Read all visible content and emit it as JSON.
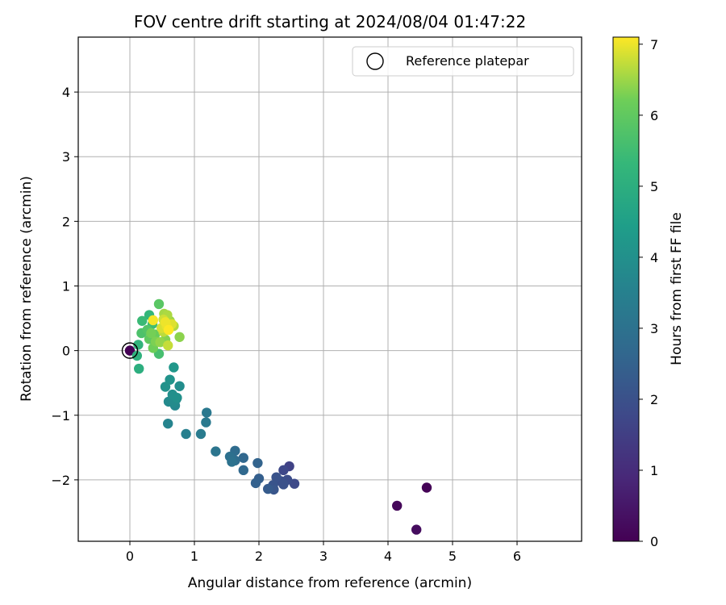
{
  "chart_data": {
    "type": "scatter",
    "title": "FOV centre drift starting at 2024/08/04 01:47:22",
    "xlabel": "Angular distance from reference (arcmin)",
    "ylabel": "Rotation from reference (arcmin)",
    "xlim": [
      -0.8,
      7.0
    ],
    "ylim": [
      -2.95,
      4.85
    ],
    "xticks": [
      0,
      1,
      2,
      3,
      4,
      5,
      6
    ],
    "yticks": [
      -2,
      -1,
      0,
      1,
      2,
      3,
      4
    ],
    "xtick_labels": [
      "0",
      "1",
      "2",
      "3",
      "4",
      "5",
      "6"
    ],
    "ytick_labels": [
      "−2",
      "−1",
      "0",
      "1",
      "2",
      "3",
      "4"
    ],
    "grid": true,
    "legend": {
      "placement": "top-right",
      "entries": [
        {
          "label": "Reference platepar",
          "marker": "open-circle"
        }
      ]
    },
    "reference_point": {
      "x": 0,
      "y": 0
    },
    "colorbar": {
      "label": "Hours from first FF file",
      "colormap": "viridis",
      "range": [
        0,
        7.1
      ],
      "ticks": [
        0,
        1,
        2,
        3,
        4,
        5,
        6,
        7
      ],
      "tick_labels": [
        "0",
        "1",
        "2",
        "3",
        "4",
        "5",
        "6",
        "7"
      ]
    },
    "series": [
      {
        "points": [
          {
            "x": 4.6,
            "y": -2.12,
            "t": 0.05
          },
          {
            "x": 4.14,
            "y": -2.4,
            "t": 0.15
          },
          {
            "x": 4.44,
            "y": -2.77,
            "t": 0.25
          },
          {
            "x": 0.0,
            "y": 0.0,
            "t": 0.0
          },
          {
            "x": 2.47,
            "y": -1.79,
            "t": 1.6
          },
          {
            "x": 2.38,
            "y": -1.85,
            "t": 1.75
          },
          {
            "x": 2.55,
            "y": -2.06,
            "t": 1.8
          },
          {
            "x": 2.44,
            "y": -2.0,
            "t": 1.9
          },
          {
            "x": 2.34,
            "y": -2.02,
            "t": 1.95
          },
          {
            "x": 2.38,
            "y": -2.07,
            "t": 2.0
          },
          {
            "x": 2.27,
            "y": -1.96,
            "t": 2.05
          },
          {
            "x": 2.22,
            "y": -2.08,
            "t": 2.1
          },
          {
            "x": 2.23,
            "y": -2.15,
            "t": 2.15
          },
          {
            "x": 2.14,
            "y": -2.14,
            "t": 2.3
          },
          {
            "x": 2.0,
            "y": -1.98,
            "t": 2.4
          },
          {
            "x": 1.95,
            "y": -2.05,
            "t": 2.45
          },
          {
            "x": 1.98,
            "y": -1.74,
            "t": 2.55
          },
          {
            "x": 1.76,
            "y": -1.66,
            "t": 2.65
          },
          {
            "x": 1.76,
            "y": -1.85,
            "t": 2.7
          },
          {
            "x": 1.63,
            "y": -1.55,
            "t": 2.8
          },
          {
            "x": 1.63,
            "y": -1.7,
            "t": 2.85
          },
          {
            "x": 1.55,
            "y": -1.64,
            "t": 2.95
          },
          {
            "x": 1.58,
            "y": -1.72,
            "t": 3.0
          },
          {
            "x": 1.33,
            "y": -1.56,
            "t": 3.1
          },
          {
            "x": 1.19,
            "y": -0.96,
            "t": 3.2
          },
          {
            "x": 1.18,
            "y": -1.11,
            "t": 3.25
          },
          {
            "x": 1.1,
            "y": -1.29,
            "t": 3.3
          },
          {
            "x": 0.87,
            "y": -1.29,
            "t": 3.45
          },
          {
            "x": 0.59,
            "y": -1.13,
            "t": 3.6
          },
          {
            "x": 0.7,
            "y": -0.85,
            "t": 3.7
          },
          {
            "x": 0.72,
            "y": -0.75,
            "t": 3.75
          },
          {
            "x": 0.6,
            "y": -0.79,
            "t": 3.8
          },
          {
            "x": 0.68,
            "y": -0.8,
            "t": 3.85
          },
          {
            "x": 0.77,
            "y": -0.55,
            "t": 3.9
          },
          {
            "x": 0.66,
            "y": -0.68,
            "t": 3.95
          },
          {
            "x": 0.73,
            "y": -0.73,
            "t": 4.0
          },
          {
            "x": 0.55,
            "y": -0.56,
            "t": 4.05
          },
          {
            "x": 0.62,
            "y": -0.45,
            "t": 4.1
          },
          {
            "x": 0.68,
            "y": -0.26,
            "t": 4.2
          },
          {
            "x": 0.14,
            "y": -0.28,
            "t": 5.0
          },
          {
            "x": 0.11,
            "y": -0.08,
            "t": 5.1
          },
          {
            "x": 0.13,
            "y": 0.09,
            "t": 5.2
          },
          {
            "x": 0.3,
            "y": 0.55,
            "t": 5.3
          },
          {
            "x": 0.19,
            "y": 0.46,
            "t": 5.4
          },
          {
            "x": 0.35,
            "y": 0.41,
            "t": 5.5
          },
          {
            "x": 0.45,
            "y": -0.05,
            "t": 5.6
          },
          {
            "x": 0.18,
            "y": 0.27,
            "t": 5.7
          },
          {
            "x": 0.27,
            "y": 0.32,
            "t": 5.8
          },
          {
            "x": 0.45,
            "y": 0.72,
            "t": 5.9
          },
          {
            "x": 0.3,
            "y": 0.18,
            "t": 6.0
          },
          {
            "x": 0.39,
            "y": 0.25,
            "t": 6.1
          },
          {
            "x": 0.36,
            "y": 0.04,
            "t": 6.2
          },
          {
            "x": 0.33,
            "y": 0.27,
            "t": 6.25
          },
          {
            "x": 0.4,
            "y": 0.14,
            "t": 6.3
          },
          {
            "x": 0.55,
            "y": 0.17,
            "t": 6.35
          },
          {
            "x": 0.77,
            "y": 0.21,
            "t": 6.4
          },
          {
            "x": 0.47,
            "y": 0.13,
            "t": 6.45
          },
          {
            "x": 0.62,
            "y": 0.46,
            "t": 6.5
          },
          {
            "x": 0.53,
            "y": 0.57,
            "t": 6.55
          },
          {
            "x": 0.58,
            "y": 0.55,
            "t": 6.6
          },
          {
            "x": 0.68,
            "y": 0.38,
            "t": 6.65
          },
          {
            "x": 0.52,
            "y": 0.29,
            "t": 6.7
          },
          {
            "x": 0.59,
            "y": 0.08,
            "t": 6.75
          },
          {
            "x": 0.52,
            "y": 0.48,
            "t": 6.8
          },
          {
            "x": 0.49,
            "y": 0.35,
            "t": 6.85
          },
          {
            "x": 0.65,
            "y": 0.41,
            "t": 6.9
          },
          {
            "x": 0.57,
            "y": 0.38,
            "t": 6.95
          },
          {
            "x": 0.55,
            "y": 0.44,
            "t": 7.0
          },
          {
            "x": 0.36,
            "y": 0.47,
            "t": 7.05
          },
          {
            "x": 0.6,
            "y": 0.32,
            "t": 7.1
          }
        ]
      }
    ]
  }
}
